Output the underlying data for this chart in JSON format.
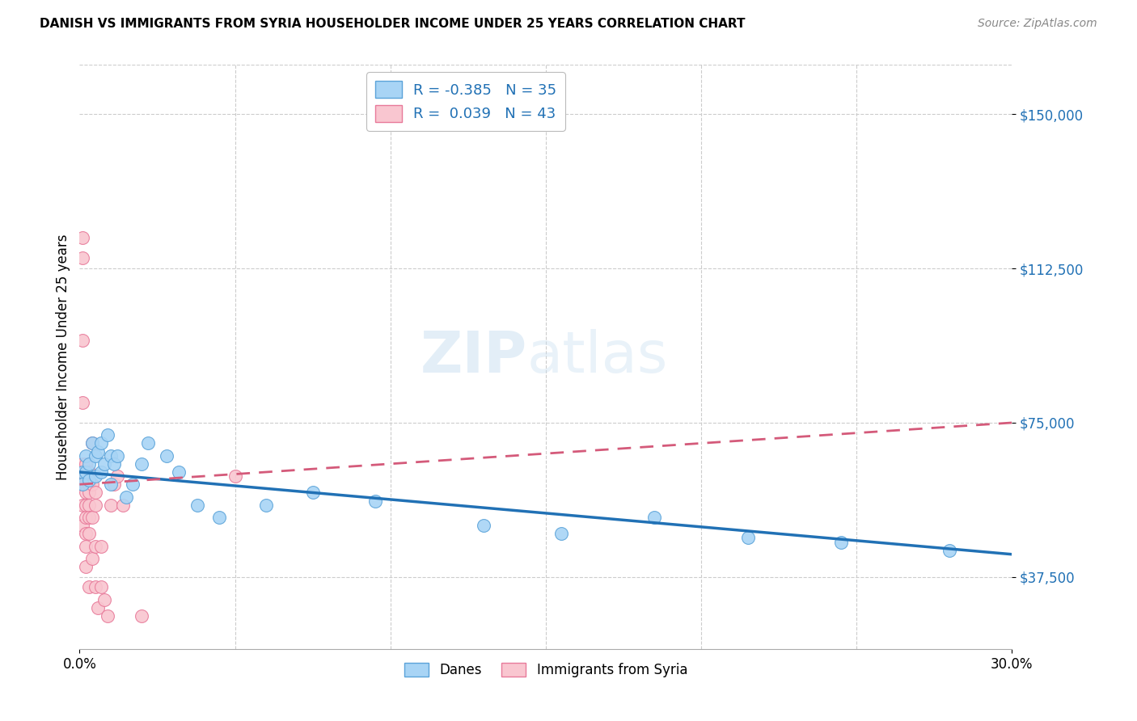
{
  "title": "DANISH VS IMMIGRANTS FROM SYRIA HOUSEHOLDER INCOME UNDER 25 YEARS CORRELATION CHART",
  "source": "Source: ZipAtlas.com",
  "ylabel": "Householder Income Under 25 years",
  "y_ticks": [
    37500,
    75000,
    112500,
    150000
  ],
  "y_tick_labels": [
    "$37,500",
    "$75,000",
    "$112,500",
    "$150,000"
  ],
  "xlim": [
    0.0,
    0.3
  ],
  "ylim": [
    20000,
    162000
  ],
  "danes_R": -0.385,
  "danes_N": 35,
  "syria_R": 0.039,
  "syria_N": 43,
  "danes_color": "#A8D4F5",
  "danes_edge_color": "#5BA3D9",
  "danes_line_color": "#2171B5",
  "syria_color": "#F9C6D0",
  "syria_edge_color": "#E87A9A",
  "syria_line_color": "#D45A7A",
  "watermark_zip": "ZIP",
  "watermark_atlas": "atlas",
  "danes_x": [
    0.001,
    0.001,
    0.002,
    0.002,
    0.003,
    0.003,
    0.004,
    0.005,
    0.005,
    0.006,
    0.007,
    0.007,
    0.008,
    0.009,
    0.01,
    0.01,
    0.011,
    0.012,
    0.015,
    0.017,
    0.02,
    0.022,
    0.028,
    0.032,
    0.038,
    0.045,
    0.06,
    0.075,
    0.095,
    0.13,
    0.155,
    0.185,
    0.215,
    0.245,
    0.28
  ],
  "danes_y": [
    63000,
    60000,
    67000,
    63000,
    65000,
    61000,
    70000,
    67000,
    62000,
    68000,
    70000,
    63000,
    65000,
    72000,
    60000,
    67000,
    65000,
    67000,
    57000,
    60000,
    65000,
    70000,
    67000,
    63000,
    55000,
    52000,
    55000,
    58000,
    56000,
    50000,
    48000,
    52000,
    47000,
    46000,
    44000
  ],
  "syria_x": [
    0.001,
    0.001,
    0.001,
    0.001,
    0.001,
    0.001,
    0.001,
    0.001,
    0.002,
    0.002,
    0.002,
    0.002,
    0.002,
    0.002,
    0.002,
    0.002,
    0.002,
    0.003,
    0.003,
    0.003,
    0.003,
    0.003,
    0.003,
    0.003,
    0.004,
    0.004,
    0.004,
    0.004,
    0.005,
    0.005,
    0.005,
    0.005,
    0.006,
    0.007,
    0.007,
    0.008,
    0.009,
    0.01,
    0.011,
    0.012,
    0.014,
    0.02,
    0.05
  ],
  "syria_y": [
    120000,
    115000,
    95000,
    80000,
    65000,
    60000,
    55000,
    50000,
    65000,
    62000,
    60000,
    58000,
    55000,
    52000,
    48000,
    45000,
    40000,
    63000,
    60000,
    58000,
    55000,
    52000,
    48000,
    35000,
    70000,
    60000,
    52000,
    42000,
    58000,
    55000,
    45000,
    35000,
    30000,
    45000,
    35000,
    32000,
    28000,
    55000,
    60000,
    62000,
    55000,
    28000,
    62000
  ]
}
